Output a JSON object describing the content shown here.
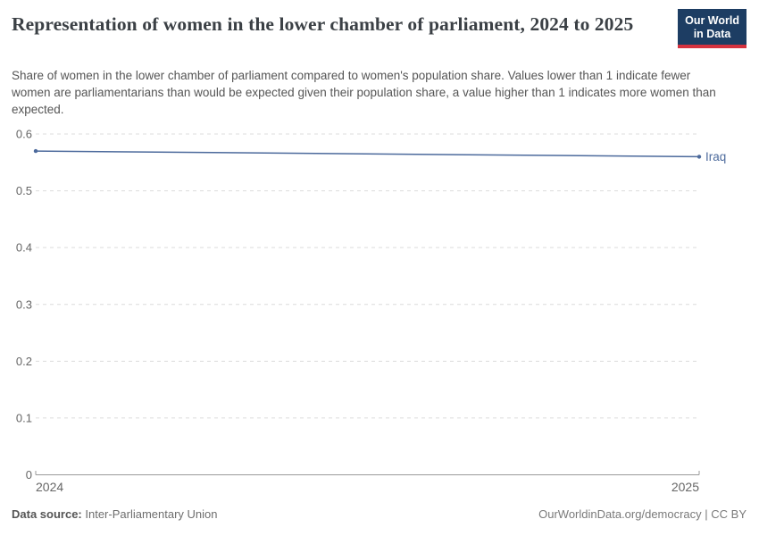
{
  "header": {
    "title": "Representation of women in the lower chamber of parliament, 2024 to 2025",
    "subtitle": "Share of women in the lower chamber of parliament compared to women's population share. Values lower than 1 indicate fewer women are parliamentarians than would be expected given their population share, a value higher than 1 indicates more women than expected.",
    "logo": {
      "line1": "Our World",
      "line2": "in Data",
      "background": "#1d3d63",
      "stripe": "#d5323f"
    }
  },
  "chart_data": {
    "type": "line",
    "title": "Representation of women in the lower chamber of parliament, 2024 to 2025",
    "x": [
      2024,
      2025
    ],
    "series": [
      {
        "name": "Iraq",
        "color": "#4c6a9c",
        "values": [
          0.57,
          0.56
        ]
      }
    ],
    "xlim": [
      2024,
      2025
    ],
    "ylim": [
      0,
      0.6
    ],
    "yticks": [
      0,
      0.1,
      0.2,
      0.3,
      0.4,
      0.5,
      0.6
    ],
    "ytick_labels": [
      "0",
      "0.1",
      "0.2",
      "0.3",
      "0.4",
      "0.5",
      "0.6"
    ],
    "xticks": [
      2024,
      2025
    ],
    "xtick_labels": [
      "2024",
      "2025"
    ],
    "xlabel": "",
    "ylabel": "",
    "grid": "horizontal-dashed",
    "grid_color": "#dcdcdc",
    "axis_color": "#9a9a9a",
    "tick_label_color": "#666666",
    "legend_position": "end-of-line-label"
  },
  "footer": {
    "source_label": "Data source:",
    "source_value": "Inter-Parliamentary Union",
    "license_text": "OurWorldinData.org/democracy | CC BY"
  }
}
